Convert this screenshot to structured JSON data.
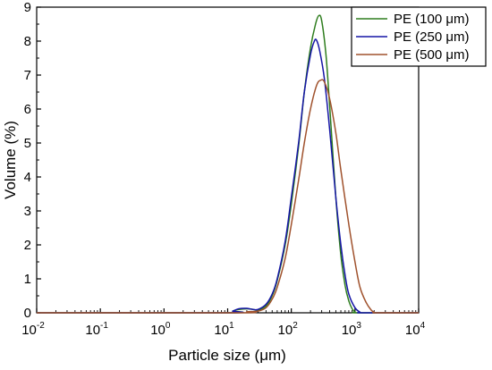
{
  "chart_data": {
    "type": "line",
    "title": "",
    "xlabel": "Particle size (μm)",
    "ylabel": "Volume (%)",
    "xscale": "log",
    "xlim": [
      0.01,
      10000
    ],
    "ylim": [
      0,
      9
    ],
    "x_ticks": [
      0.01,
      0.1,
      1,
      10,
      100,
      1000,
      10000
    ],
    "x_tick_labels": [
      {
        "base": "10",
        "exp": "-2"
      },
      {
        "base": "10",
        "exp": "-1"
      },
      {
        "base": "10",
        "exp": "0"
      },
      {
        "base": "10",
        "exp": "1"
      },
      {
        "base": "10",
        "exp": "2"
      },
      {
        "base": "10",
        "exp": "3"
      },
      {
        "base": "10",
        "exp": "4"
      }
    ],
    "y_ticks": [
      0,
      1,
      2,
      3,
      4,
      5,
      6,
      7,
      8,
      9
    ],
    "y_tick_labels": [
      "0",
      "1",
      "2",
      "3",
      "4",
      "5",
      "6",
      "7",
      "8",
      "9"
    ],
    "grid": false,
    "legend_position": "top-right",
    "series": [
      {
        "name": "PE (100 μm)",
        "color": "#2e7d1e",
        "points": [
          [
            0.01,
            0
          ],
          [
            10,
            0
          ],
          [
            12,
            0.05
          ],
          [
            15,
            0.1
          ],
          [
            20,
            0.12
          ],
          [
            25,
            0.1
          ],
          [
            30,
            0.08
          ],
          [
            40,
            0.2
          ],
          [
            50,
            0.5
          ],
          [
            60,
            0.95
          ],
          [
            80,
            2.0
          ],
          [
            100,
            3.2
          ],
          [
            130,
            4.9
          ],
          [
            160,
            6.5
          ],
          [
            200,
            7.8
          ],
          [
            240,
            8.5
          ],
          [
            270,
            8.75
          ],
          [
            300,
            8.6
          ],
          [
            350,
            7.6
          ],
          [
            400,
            6.1
          ],
          [
            500,
            3.4
          ],
          [
            600,
            1.7
          ],
          [
            700,
            0.8
          ],
          [
            800,
            0.35
          ],
          [
            900,
            0.12
          ],
          [
            1000,
            0.03
          ],
          [
            1100,
            0
          ],
          [
            10000,
            0
          ]
        ]
      },
      {
        "name": "PE (250 μm)",
        "color": "#1515a6",
        "points": [
          [
            0.01,
            0
          ],
          [
            10,
            0
          ],
          [
            12,
            0.05
          ],
          [
            15,
            0.12
          ],
          [
            20,
            0.13
          ],
          [
            25,
            0.1
          ],
          [
            30,
            0.1
          ],
          [
            40,
            0.25
          ],
          [
            50,
            0.55
          ],
          [
            60,
            1.0
          ],
          [
            80,
            2.1
          ],
          [
            100,
            3.4
          ],
          [
            130,
            5.0
          ],
          [
            160,
            6.5
          ],
          [
            200,
            7.6
          ],
          [
            230,
            8.0
          ],
          [
            250,
            8.02
          ],
          [
            280,
            7.7
          ],
          [
            330,
            6.9
          ],
          [
            400,
            5.4
          ],
          [
            500,
            3.4
          ],
          [
            600,
            2.0
          ],
          [
            700,
            1.1
          ],
          [
            800,
            0.55
          ],
          [
            1000,
            0.15
          ],
          [
            1200,
            0.02
          ],
          [
            1300,
            0
          ],
          [
            10000,
            0
          ]
        ]
      },
      {
        "name": "PE (500 μm)",
        "color": "#a0522d",
        "points": [
          [
            0.01,
            0
          ],
          [
            15,
            0
          ],
          [
            20,
            0.03
          ],
          [
            30,
            0.05
          ],
          [
            40,
            0.15
          ],
          [
            50,
            0.4
          ],
          [
            60,
            0.75
          ],
          [
            80,
            1.6
          ],
          [
            100,
            2.6
          ],
          [
            130,
            3.9
          ],
          [
            160,
            5.0
          ],
          [
            200,
            6.0
          ],
          [
            250,
            6.7
          ],
          [
            290,
            6.85
          ],
          [
            330,
            6.8
          ],
          [
            400,
            6.3
          ],
          [
            500,
            5.3
          ],
          [
            600,
            4.2
          ],
          [
            800,
            2.6
          ],
          [
            1000,
            1.5
          ],
          [
            1200,
            0.75
          ],
          [
            1500,
            0.3
          ],
          [
            1800,
            0.08
          ],
          [
            2000,
            0.02
          ],
          [
            2200,
            0
          ],
          [
            10000,
            0
          ]
        ]
      }
    ]
  }
}
